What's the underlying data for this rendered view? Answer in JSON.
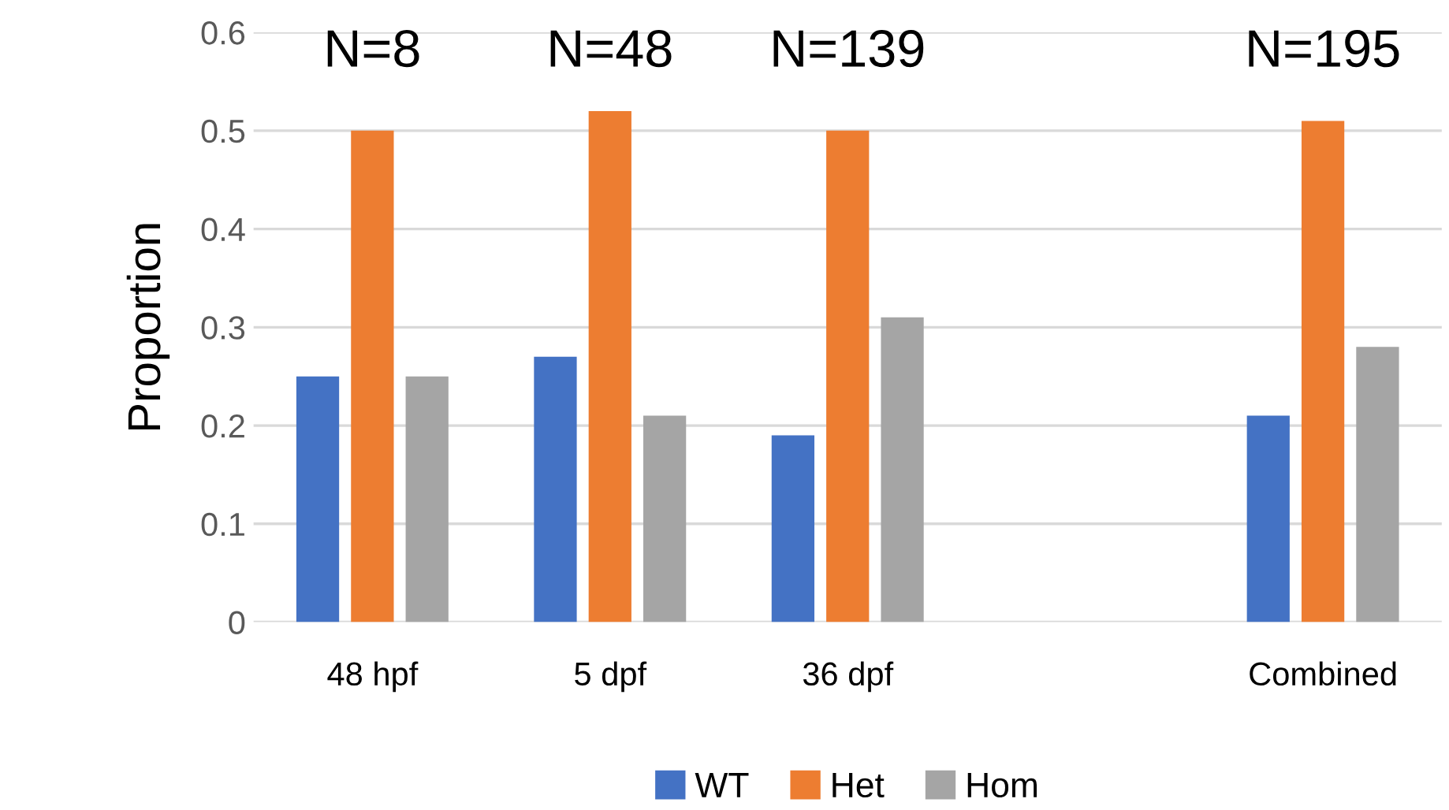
{
  "chart_data": {
    "type": "bar",
    "ylabel": "Proportion",
    "categories": [
      "48 hpf",
      "5 dpf",
      "36 dpf",
      null,
      "Combined"
    ],
    "series": [
      {
        "name": "WT",
        "color": "#4472c4",
        "values": [
          0.25,
          0.27,
          0.19,
          null,
          0.21
        ]
      },
      {
        "name": "Het",
        "color": "#ed7d31",
        "values": [
          0.5,
          0.52,
          0.5,
          null,
          0.51
        ]
      },
      {
        "name": "Hom",
        "color": "#a5a5a5",
        "values": [
          0.25,
          0.21,
          0.31,
          null,
          0.28
        ]
      }
    ],
    "ylim": [
      0,
      0.6
    ],
    "yticks": [
      0,
      0.1,
      0.2,
      0.3,
      0.4,
      0.5,
      0.6
    ],
    "grid": "y",
    "legend": "bottom",
    "annotations": [
      "N=8",
      "N=48",
      "N=139",
      "N=195"
    ]
  }
}
